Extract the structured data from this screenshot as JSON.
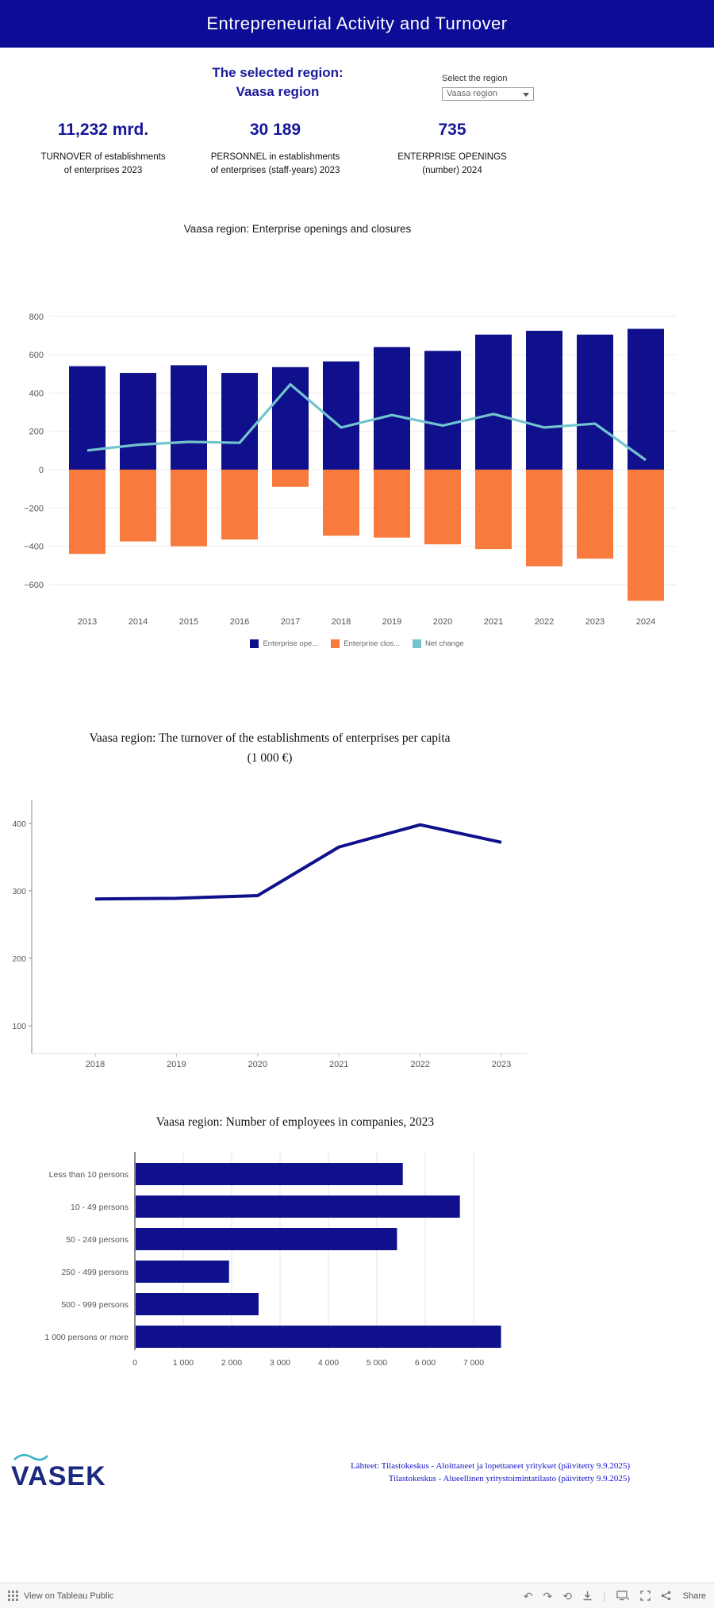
{
  "header": {
    "title": "Entrepreneurial Activity and Turnover",
    "bg_color": "#0c0c96"
  },
  "region": {
    "line1": "The selected region:",
    "line2": "Vaasa region"
  },
  "selector": {
    "label": "Select the region",
    "value": "Vaasa region"
  },
  "kpis": [
    {
      "value": "11,232 mrd.",
      "label_line1": "TURNOVER of establishments",
      "label_line2": "of enterprises 2023"
    },
    {
      "value": "30 189",
      "label_line1": "PERSONNEL in establishments",
      "label_line2": "of enterprises (staff-years) 2023"
    },
    {
      "value": "735",
      "label_line1": "ENTERPRISE OPENINGS",
      "label_line2": "(number) 2024"
    }
  ],
  "colors": {
    "navy": "#10108c",
    "orange": "#f87a3c",
    "teal": "#72c5ce",
    "accent_text": "#16169a"
  },
  "chart_data": [
    {
      "type": "bar",
      "title": "Vaasa region:  Enterprise openings and closures",
      "categories": [
        "2013",
        "2014",
        "2015",
        "2016",
        "2017",
        "2018",
        "2019",
        "2020",
        "2021",
        "2022",
        "2023",
        "2024"
      ],
      "series": [
        {
          "name": "Enterprise ope...",
          "kind": "bar",
          "color": "#10108c",
          "values": [
            540,
            505,
            545,
            505,
            535,
            565,
            640,
            620,
            705,
            725,
            705,
            735
          ]
        },
        {
          "name": "Enterprise clos...",
          "kind": "bar",
          "color": "#f87a3c",
          "values": [
            -440,
            -375,
            -400,
            -365,
            -90,
            -345,
            -355,
            -390,
            -415,
            -505,
            -465,
            -685
          ]
        },
        {
          "name": "Net change",
          "kind": "line",
          "color": "#72c5ce",
          "values": [
            100,
            130,
            145,
            140,
            445,
            220,
            285,
            230,
            290,
            220,
            240,
            50
          ]
        }
      ],
      "yticks": [
        800,
        600,
        400,
        200,
        0,
        -200,
        -400,
        -600
      ],
      "ylim": [
        -700,
        820
      ],
      "legend_position": "bottom",
      "grid": true
    },
    {
      "type": "line",
      "title": "Vaasa region: The turnover of the establishments of enterprises per capita",
      "subtitle": "(1 000 €)",
      "x": [
        "2018",
        "2019",
        "2020",
        "2021",
        "2022",
        "2023"
      ],
      "values": [
        288,
        289,
        293,
        365,
        398,
        372
      ],
      "yticks": [
        400,
        300,
        200,
        100
      ],
      "ylim": [
        0,
        430
      ],
      "color": "#10108c",
      "grid": false
    },
    {
      "type": "bar",
      "orientation": "horizontal",
      "title": "Vaasa region: Number of employees in companies, 2023",
      "categories": [
        "Less than 10 persons",
        "10 - 49 persons",
        "50 - 249 persons",
        "250 - 499 persons",
        "500 - 999 persons",
        "1 000 persons or more"
      ],
      "values": [
        5520,
        6700,
        5400,
        1930,
        2540,
        7550
      ],
      "xticks": [
        0,
        1000,
        2000,
        3000,
        4000,
        5000,
        6000,
        7000
      ],
      "xtick_labels": [
        "0",
        "1 000",
        "2 000",
        "3 000",
        "4 000",
        "5 000",
        "6 000",
        "7 000"
      ],
      "xlim": [
        0,
        7800
      ],
      "color": "#10108c",
      "grid": true
    }
  ],
  "footer": {
    "logo_text": "VASEK",
    "sources": [
      "Lähteet: Tilastokeskus - Aloittaneet ja lopettaneet yritykset (päivitetty 9.9.2025)",
      "Tilastokeskus - Alueellinen yritystoimintatilasto (päivitetty 9.9.2025)"
    ]
  },
  "toolbar": {
    "view_label": "View on Tableau Public",
    "share_label": "Share",
    "undo_glyph": "↶",
    "redo_glyph": "↷",
    "reset_glyph": "⟲"
  }
}
